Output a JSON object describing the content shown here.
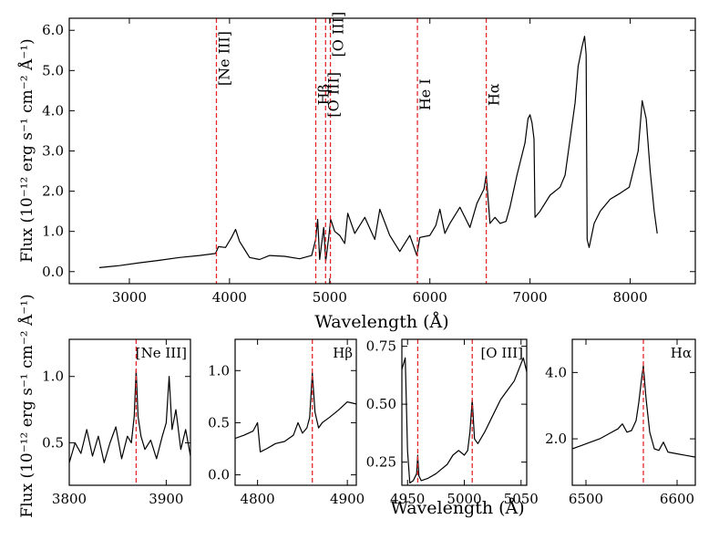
{
  "chart_data": [
    {
      "type": "line",
      "id": "main",
      "xlabel": "Wavelength (Å)",
      "ylabel": "Flux (10⁻¹² erg s⁻¹ cm⁻² Å⁻¹)",
      "xlim": [
        2400,
        8650
      ],
      "ylim": [
        -0.3,
        6.3
      ],
      "xticks": [
        3000,
        4000,
        5000,
        6000,
        7000,
        8000
      ],
      "yticks": [
        0.0,
        1.0,
        2.0,
        3.0,
        4.0,
        5.0,
        6.0
      ],
      "ytick_labels": [
        "0.0",
        "1.0",
        "2.0",
        "3.0",
        "4.0",
        "5.0",
        "6.0"
      ],
      "series": [
        {
          "name": "spectrum",
          "x": [
            2700,
            2900,
            3100,
            3300,
            3500,
            3700,
            3860,
            3890,
            3960,
            4020,
            4060,
            4100,
            4150,
            4200,
            4300,
            4400,
            4550,
            4700,
            4820,
            4860,
            4880,
            4900,
            4940,
            4960,
            4990,
            5010,
            5050,
            5100,
            5150,
            5180,
            5250,
            5350,
            5450,
            5500,
            5600,
            5700,
            5800,
            5870,
            5900,
            6000,
            6060,
            6100,
            6150,
            6200,
            6300,
            6400,
            6470,
            6540,
            6563,
            6600,
            6650,
            6700,
            6760,
            6800,
            6870,
            6950,
            6980,
            7000,
            7020,
            7040,
            7050,
            7100,
            7200,
            7300,
            7350,
            7400,
            7450,
            7480,
            7520,
            7545,
            7560,
            7570,
            7590,
            7640,
            7700,
            7800,
            7900,
            7990,
            8080,
            8120,
            8160,
            8200,
            8240,
            8270
          ],
          "y": [
            0.1,
            0.15,
            0.22,
            0.28,
            0.35,
            0.4,
            0.45,
            0.62,
            0.6,
            0.85,
            1.05,
            0.75,
            0.55,
            0.35,
            0.3,
            0.4,
            0.38,
            0.32,
            0.4,
            0.8,
            1.3,
            0.3,
            1.1,
            0.25,
            0.85,
            1.3,
            1.0,
            0.9,
            0.7,
            1.45,
            0.95,
            1.35,
            0.8,
            1.55,
            0.9,
            0.5,
            0.9,
            0.4,
            0.85,
            0.9,
            1.15,
            1.55,
            0.95,
            1.2,
            1.6,
            1.1,
            1.7,
            2.05,
            2.4,
            1.2,
            1.35,
            1.2,
            1.25,
            1.6,
            2.4,
            3.2,
            3.8,
            3.9,
            3.7,
            3.3,
            1.35,
            1.5,
            1.9,
            2.1,
            2.4,
            3.3,
            4.2,
            5.1,
            5.6,
            5.85,
            5.4,
            0.8,
            0.6,
            1.2,
            1.5,
            1.8,
            1.95,
            2.1,
            3.0,
            4.25,
            3.8,
            2.5,
            1.5,
            0.95
          ]
        }
      ],
      "lines": [
        {
          "x": 3869,
          "label": "[Ne III]",
          "label_y": 5.3
        },
        {
          "x": 4861,
          "label": "Hβ",
          "label_y": 4.4
        },
        {
          "x": 4959,
          "label": "[O III]",
          "label_y": 4.4
        },
        {
          "x": 5007,
          "label": "[O III]",
          "label_y": 5.9
        },
        {
          "x": 5876,
          "label": "He I",
          "label_y": 4.4
        },
        {
          "x": 6563,
          "label": "Hα",
          "label_y": 4.4
        }
      ]
    },
    {
      "type": "line",
      "id": "ne3",
      "title": "[Ne III]",
      "xlim": [
        3800,
        3925
      ],
      "ylim": [
        0.18,
        1.28
      ],
      "xticks": [
        3800,
        3900
      ],
      "yticks": [
        0.5,
        1.0
      ],
      "ytick_labels": [
        "0.5",
        "1.0"
      ],
      "line_x": [
        3869
      ],
      "series": [
        {
          "name": "zoom",
          "x": [
            3800,
            3806,
            3812,
            3818,
            3824,
            3830,
            3836,
            3842,
            3848,
            3854,
            3860,
            3864,
            3867,
            3869,
            3871,
            3874,
            3878,
            3884,
            3890,
            3896,
            3900,
            3903,
            3906,
            3910,
            3915,
            3920,
            3925
          ],
          "y": [
            0.35,
            0.5,
            0.42,
            0.6,
            0.4,
            0.55,
            0.35,
            0.5,
            0.62,
            0.38,
            0.55,
            0.5,
            0.7,
            1.05,
            0.7,
            0.55,
            0.45,
            0.52,
            0.38,
            0.55,
            0.65,
            1.0,
            0.6,
            0.75,
            0.45,
            0.6,
            0.4
          ]
        }
      ]
    },
    {
      "type": "line",
      "id": "hb",
      "title": "Hβ",
      "xlim": [
        4775,
        4910
      ],
      "ylim": [
        -0.1,
        1.3
      ],
      "xticks": [
        4800,
        4900
      ],
      "yticks": [
        0.0,
        0.5,
        1.0
      ],
      "ytick_labels": [
        "0.0",
        "0.5",
        "1.0"
      ],
      "line_x": [
        4861
      ],
      "series": [
        {
          "name": "zoom",
          "x": [
            4775,
            4785,
            4795,
            4800,
            4803,
            4810,
            4820,
            4830,
            4840,
            4845,
            4850,
            4855,
            4858,
            4861,
            4864,
            4868,
            4872,
            4880,
            4890,
            4900,
            4910
          ],
          "y": [
            0.35,
            0.38,
            0.42,
            0.5,
            0.22,
            0.25,
            0.3,
            0.32,
            0.38,
            0.5,
            0.4,
            0.45,
            0.55,
            0.98,
            0.6,
            0.45,
            0.5,
            0.55,
            0.62,
            0.7,
            0.68
          ]
        }
      ]
    },
    {
      "type": "line",
      "id": "o3",
      "title": "[O III]",
      "xlim": [
        4945,
        5055
      ],
      "ylim": [
        0.15,
        0.78
      ],
      "xticks": [
        4950,
        5000,
        5050
      ],
      "yticks": [
        0.25,
        0.5,
        0.75
      ],
      "ytick_labels": [
        "0.25",
        "0.50",
        "0.75"
      ],
      "line_x": [
        4959,
        5007
      ],
      "series": [
        {
          "name": "zoom",
          "x": [
            4945,
            4948,
            4950,
            4952,
            4955,
            4958,
            4959,
            4960,
            4962,
            4968,
            4975,
            4980,
            4985,
            4990,
            4995,
            5000,
            5003,
            5005,
            5007,
            5009,
            5012,
            5018,
            5025,
            5032,
            5038,
            5044,
            5048,
            5052,
            5055
          ],
          "y": [
            0.65,
            0.7,
            0.3,
            0.16,
            0.17,
            0.2,
            0.28,
            0.19,
            0.17,
            0.18,
            0.2,
            0.22,
            0.24,
            0.28,
            0.3,
            0.28,
            0.3,
            0.38,
            0.52,
            0.35,
            0.33,
            0.38,
            0.45,
            0.52,
            0.56,
            0.6,
            0.65,
            0.7,
            0.64
          ]
        }
      ]
    },
    {
      "type": "line",
      "id": "ha",
      "title": "Hα",
      "xlim": [
        6485,
        6620
      ],
      "ylim": [
        0.6,
        5.0
      ],
      "xticks": [
        6500,
        6600
      ],
      "yticks": [
        2.0,
        4.0
      ],
      "ytick_labels": [
        "2.0",
        "4.0"
      ],
      "line_x": [
        6563
      ],
      "series": [
        {
          "name": "zoom",
          "x": [
            6485,
            6495,
            6505,
            6515,
            6525,
            6535,
            6540,
            6545,
            6550,
            6555,
            6558,
            6561,
            6563,
            6566,
            6570,
            6575,
            6580,
            6585,
            6590,
            6600,
            6610,
            6620
          ],
          "y": [
            1.7,
            1.8,
            1.9,
            2.0,
            2.15,
            2.3,
            2.45,
            2.2,
            2.25,
            2.55,
            3.1,
            3.8,
            4.2,
            3.2,
            2.2,
            1.7,
            1.65,
            1.9,
            1.6,
            1.55,
            1.5,
            1.45
          ]
        }
      ]
    }
  ],
  "figure": {
    "main_xlabel": "Wavelength (Å)",
    "bottom_xlabel": "Wavelength (Å)",
    "ylabel": "Flux (10⁻¹² erg s⁻¹ cm⁻² Å⁻¹)"
  }
}
